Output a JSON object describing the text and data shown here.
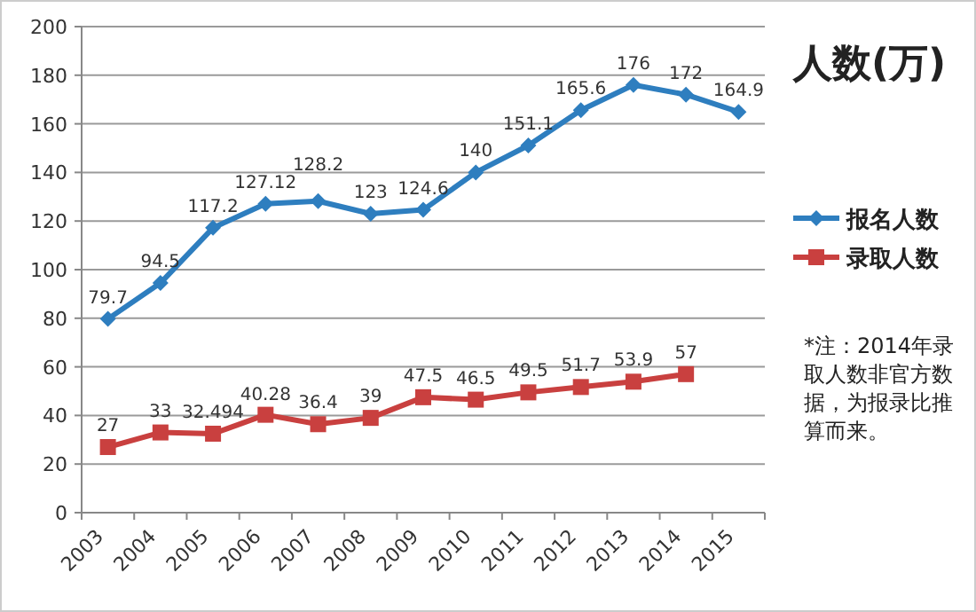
{
  "chart_data": {
    "type": "line",
    "title": "人数(万)",
    "categories": [
      "2003",
      "2004",
      "2005",
      "2006",
      "2007",
      "2008",
      "2009",
      "2010",
      "2011",
      "2012",
      "2013",
      "2014",
      "2015"
    ],
    "series": [
      {
        "name": "报名人数",
        "color": "#2e7ebf",
        "marker": "diamond",
        "values": [
          79.7,
          94.5,
          117.2,
          127.12,
          128.2,
          123,
          124.6,
          140,
          151.1,
          165.6,
          176,
          172,
          164.9
        ]
      },
      {
        "name": "录取人数",
        "color": "#c9403f",
        "marker": "square",
        "values": [
          27,
          33,
          32.494,
          40.28,
          36.4,
          39,
          47.5,
          46.5,
          49.5,
          51.7,
          53.9,
          57,
          null
        ]
      }
    ],
    "ylim": [
      0,
      200
    ],
    "yticks": [
      0,
      20,
      40,
      60,
      80,
      100,
      120,
      140,
      160,
      180,
      200
    ],
    "grid": "y",
    "legend": "right",
    "data_labels": true,
    "annotations": [
      "*注：2014年录取人数非官方数据，为报录比推算而来。"
    ]
  }
}
